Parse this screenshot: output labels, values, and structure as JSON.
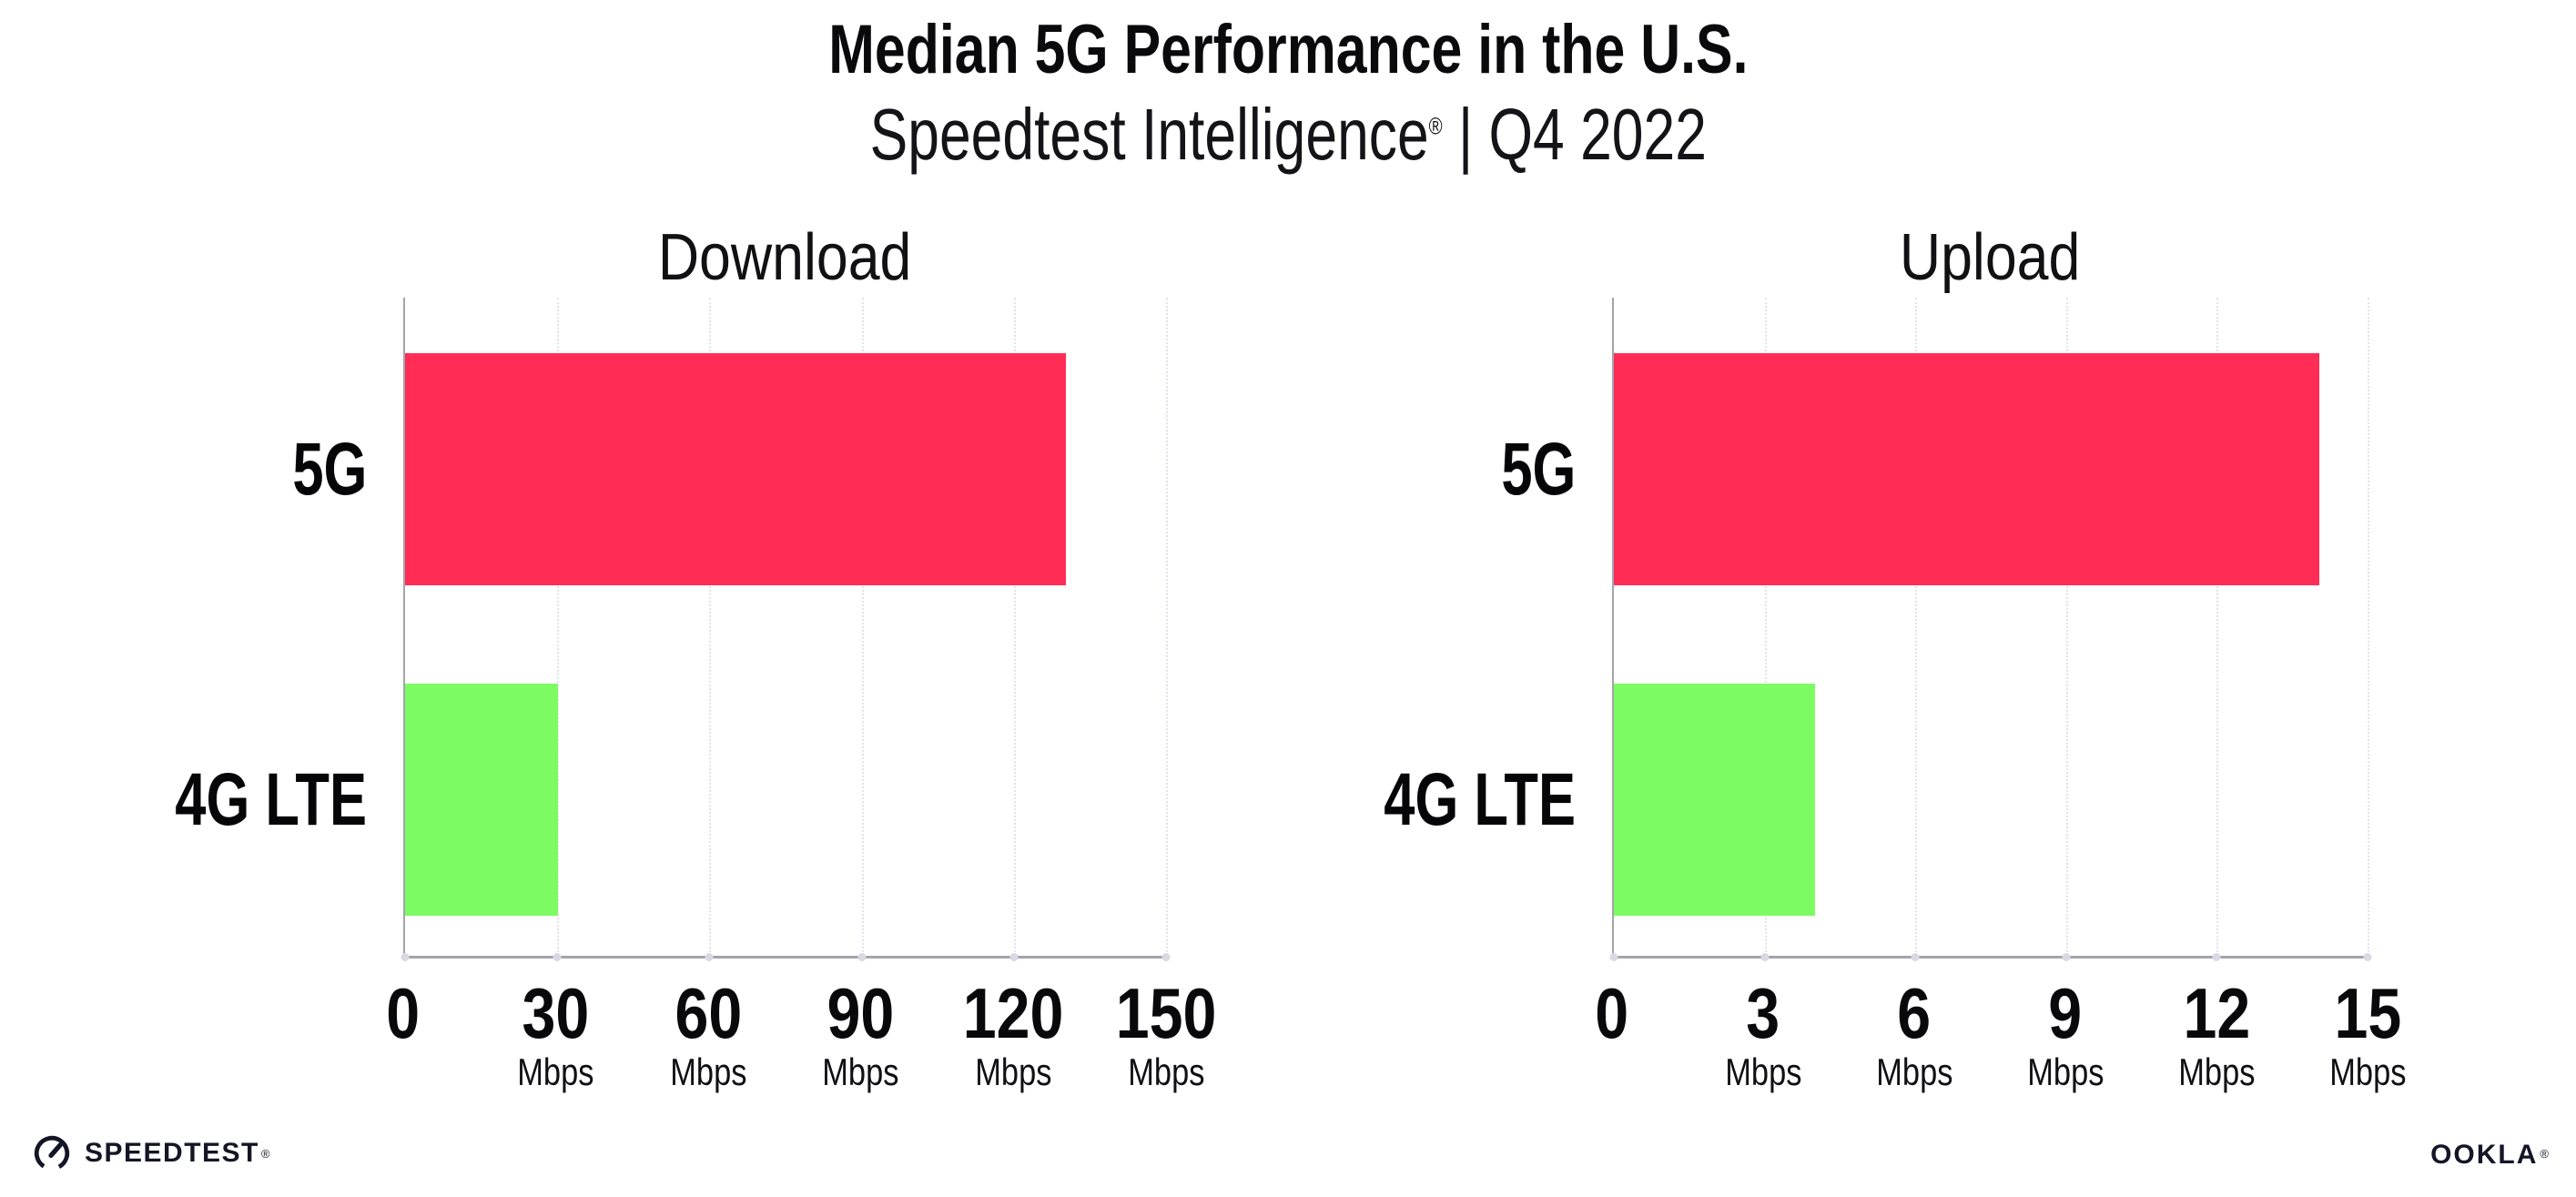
{
  "header": {
    "title": "Median 5G Performance in the U.S.",
    "subtitle_brand": "Speedtest Intelligence",
    "subtitle_reg": "®",
    "subtitle_rest": " | Q4 2022"
  },
  "chart_data": [
    {
      "type": "bar",
      "orientation": "horizontal",
      "title": "Download",
      "categories": [
        "5G",
        "4G LTE"
      ],
      "values": [
        130,
        30
      ],
      "unit": "Mbps",
      "xlim": [
        0,
        150
      ],
      "xticks": [
        0,
        30,
        60,
        90,
        120,
        150
      ],
      "bar_colors": [
        "#FF2D55",
        "#7DFB63"
      ],
      "grid": "dotted-vertical",
      "legend": "none"
    },
    {
      "type": "bar",
      "orientation": "horizontal",
      "title": "Upload",
      "categories": [
        "5G",
        "4G LTE"
      ],
      "values": [
        14,
        4
      ],
      "unit": "Mbps",
      "xlim": [
        0,
        15
      ],
      "xticks": [
        0,
        3,
        6,
        9,
        12,
        15
      ],
      "bar_colors": [
        "#FF2D55",
        "#7DFB63"
      ],
      "grid": "dotted-vertical",
      "legend": "none"
    }
  ],
  "footer": {
    "speedtest": "SPEEDTEST",
    "speedtest_mark": "®",
    "ookla": "OOKLA",
    "ookla_mark": "®"
  },
  "colors": {
    "bar_5g": "#FF2D55",
    "bar_4g_lte": "#7DFB63",
    "gridline": "#e2e2ea",
    "axis": "#a4a4ac",
    "text": "#0b0b0f"
  }
}
